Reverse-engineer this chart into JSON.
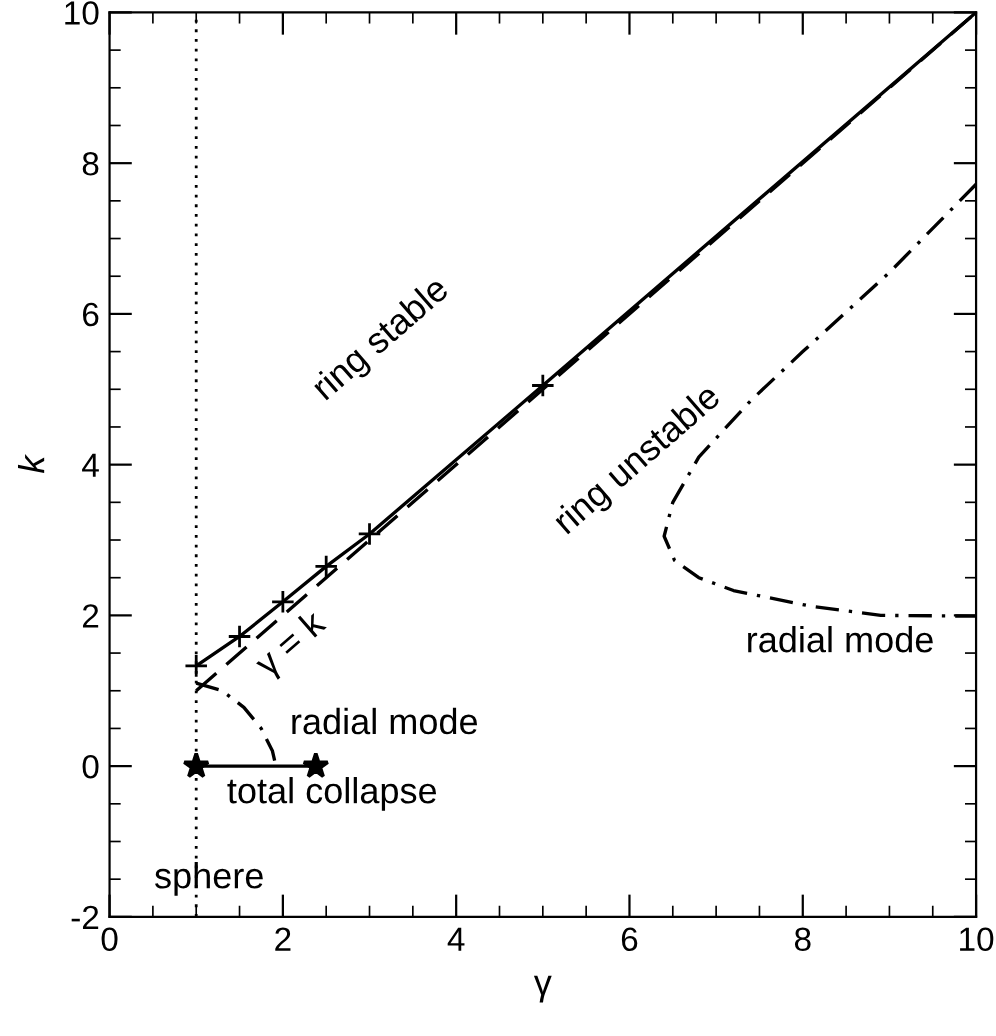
{
  "chart_data": {
    "type": "line",
    "xlabel": "γ",
    "ylabel": "k",
    "xlim": [
      0,
      10
    ],
    "ylim": [
      -2,
      10
    ],
    "xticks": [
      0,
      2,
      4,
      6,
      8,
      10
    ],
    "yticks": [
      -2,
      0,
      2,
      4,
      6,
      8,
      10
    ],
    "grid": false,
    "series": [
      {
        "color": "#000000",
        "line_style": "solid",
        "marker": "none",
        "x": [
          1,
          1.5,
          2,
          2.5,
          3,
          5,
          10
        ],
        "values": [
          1.33,
          1.72,
          2.18,
          2.65,
          3.08,
          5.05,
          10
        ]
      },
      {
        "type": "scatter",
        "color": "#000000",
        "marker": "cross",
        "x": [
          1,
          1.5,
          2,
          2.5,
          3,
          5
        ],
        "values": [
          1.33,
          1.72,
          2.18,
          2.65,
          3.08,
          5.05
        ]
      },
      {
        "color": "#000000",
        "line_style": "dashed",
        "marker": "none",
        "x": [
          1,
          10
        ],
        "values": [
          1,
          10
        ]
      },
      {
        "color": "#000000",
        "line_style": "dashdot",
        "marker": "none",
        "x": [
          10,
          9,
          8,
          7.4,
          6.8,
          6.5,
          6.4,
          6.52,
          6.8,
          7.2,
          8.1,
          8.9,
          10
        ],
        "values": [
          7.72,
          6.55,
          5.5,
          4.85,
          4.1,
          3.5,
          3.05,
          2.73,
          2.5,
          2.33,
          2.12,
          2.0,
          1.99
        ]
      },
      {
        "color": "#000000",
        "line_style": "dashdot",
        "marker": "none",
        "x": [
          1.0,
          1.3,
          1.55,
          1.75,
          1.88,
          1.92
        ],
        "values": [
          1.1,
          1.0,
          0.78,
          0.5,
          0.2,
          0
        ]
      },
      {
        "color": "#000000",
        "line_style": "solid",
        "marker": "star",
        "x": [
          1,
          2.38
        ],
        "values": [
          0,
          0
        ]
      }
    ],
    "ref_lines": [
      {
        "axis": "x",
        "value": 1,
        "line_style": "dotted",
        "color": "#000000"
      }
    ],
    "annotations": [
      "ring stable",
      "ring unstable",
      "γ = k",
      "radial mode",
      "radial mode",
      "total collapse",
      "sphere"
    ]
  }
}
